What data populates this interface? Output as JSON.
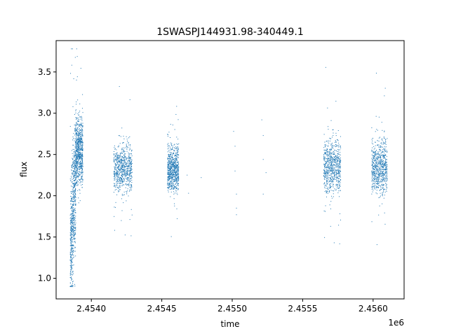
{
  "chart_data": {
    "type": "scatter",
    "title": "1SWASPJ144931.98-340449.1",
    "xlabel": "time",
    "ylabel": "flux",
    "x_offset_label": "1e6",
    "xlim": [
      2.45375,
      2.45622
    ],
    "ylim": [
      0.75,
      3.88
    ],
    "x_ticks": [
      2.454,
      2.4545,
      2.455,
      2.4555,
      2.456
    ],
    "x_tick_labels": [
      "2.4540",
      "2.4545",
      "2.4550",
      "2.4555",
      "2.4560"
    ],
    "y_ticks": [
      1.0,
      1.5,
      2.0,
      2.5,
      3.0,
      3.5
    ],
    "y_tick_labels": [
      "1.0",
      "1.5",
      "2.0",
      "2.5",
      "3.0",
      "3.5"
    ],
    "grid": false,
    "marker_color": "#1f77b4",
    "series": [
      {
        "clusters": [
          {
            "x_range": [
              2.45385,
              2.45389
            ],
            "flux_mean": 1.75,
            "flux_spread": 0.38,
            "trend": "rising"
          },
          {
            "x_range": [
              2.45389,
              2.45394
            ],
            "flux_mean": 2.55,
            "flux_spread": 0.2
          },
          {
            "x_range": [
              2.45416,
              2.45429
            ],
            "flux_mean": 2.33,
            "flux_spread": 0.14
          },
          {
            "x_range": [
              2.45454,
              2.45462
            ],
            "flux_mean": 2.33,
            "flux_spread": 0.14
          },
          {
            "x_range": [
              2.45565,
              2.45577
            ],
            "flux_mean": 2.35,
            "flux_spread": 0.16
          },
          {
            "x_range": [
              2.45599,
              2.4561
            ],
            "flux_mean": 2.35,
            "flux_spread": 0.16
          }
        ],
        "isolated_points": [
          [
            2.45468,
            2.25
          ],
          [
            2.45469,
            2.03
          ],
          [
            2.45478,
            2.22
          ],
          [
            2.45501,
            2.78
          ],
          [
            2.45502,
            2.6
          ],
          [
            2.45502,
            2.3
          ],
          [
            2.45503,
            2.02
          ],
          [
            2.45503,
            1.85
          ],
          [
            2.45503,
            1.77
          ],
          [
            2.45521,
            2.92
          ],
          [
            2.45522,
            2.73
          ],
          [
            2.45522,
            2.44
          ],
          [
            2.45522,
            2.02
          ],
          [
            2.45524,
            2.28
          ]
        ]
      }
    ]
  }
}
